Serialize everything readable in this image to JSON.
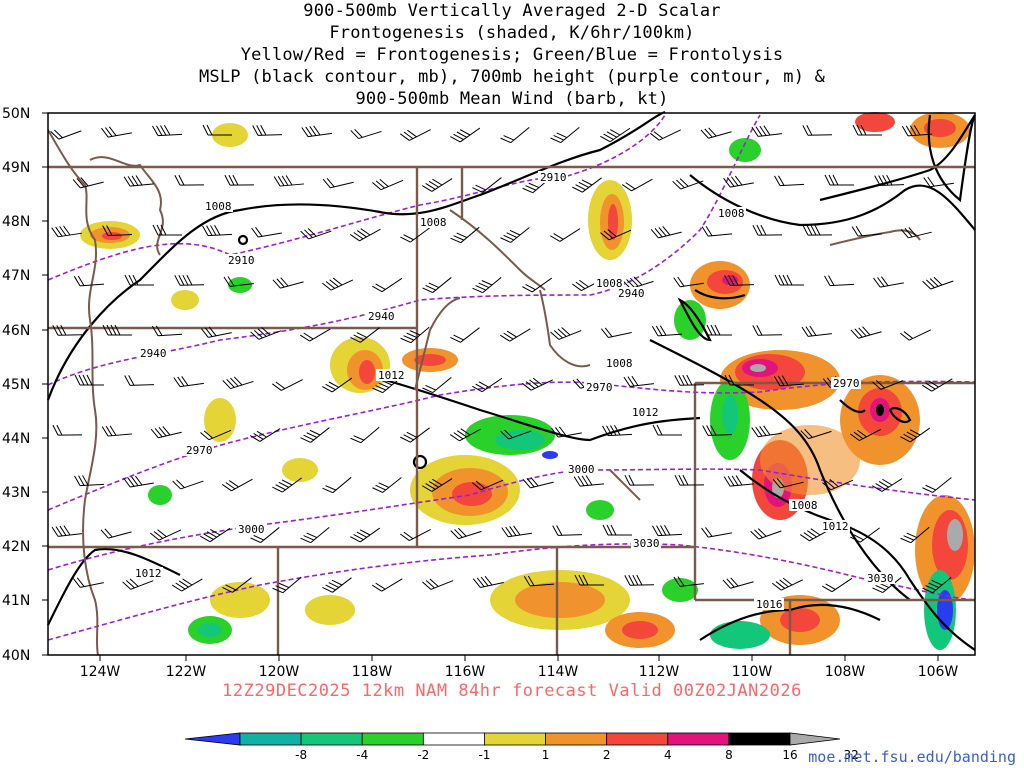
{
  "title_lines": [
    "900-500mb Vertically Averaged 2-D Scalar",
    "Frontogenesis (shaded, K/6hr/100km)",
    "Yellow/Red = Frontogenesis;  Green/Blue = Frontolysis",
    "MSLP (black contour, mb), 700mb height (purple contour, m) &",
    "900-500mb Mean Wind (barb, kt)"
  ],
  "lat_labels": [
    "50N",
    "49N",
    "48N",
    "47N",
    "46N",
    "45N",
    "44N",
    "43N",
    "42N",
    "41N",
    "40N"
  ],
  "lon_labels": [
    "124W",
    "122W",
    "120W",
    "118W",
    "116W",
    "114W",
    "112W",
    "110W",
    "108W",
    "106W"
  ],
  "footer": "12Z29DEC2025 12km NAM 84hr forecast Valid 00Z02JAN2026",
  "credit": "moe.met.fsu.edu/banding",
  "colorbar": {
    "ticks": [
      "-8",
      "-4",
      "-2",
      "-1",
      "1",
      "2",
      "4",
      "8",
      "16",
      "32"
    ],
    "colors": [
      "#2b3bf2",
      "#11b2a6",
      "#13c77a",
      "#2ad12a",
      "#ffffff",
      "#e4d435",
      "#f0932d",
      "#f2473a",
      "#e0147a",
      "#000000",
      "#aaaaaa"
    ]
  },
  "mslp_labels": [
    "1008",
    "1008",
    "1008",
    "1008",
    "1008",
    "1012",
    "1012",
    "1012",
    "1012",
    "1016",
    "1008"
  ],
  "height_labels": [
    "2910",
    "2910",
    "2940",
    "2940",
    "2940",
    "2970",
    "2970",
    "2970",
    "3000",
    "3000",
    "3030",
    "3030"
  ],
  "colors": {
    "state_borders": "#7a5a4a",
    "mslp": "#000000",
    "height": "#9a1fd6",
    "footer": "#ff6666"
  }
}
